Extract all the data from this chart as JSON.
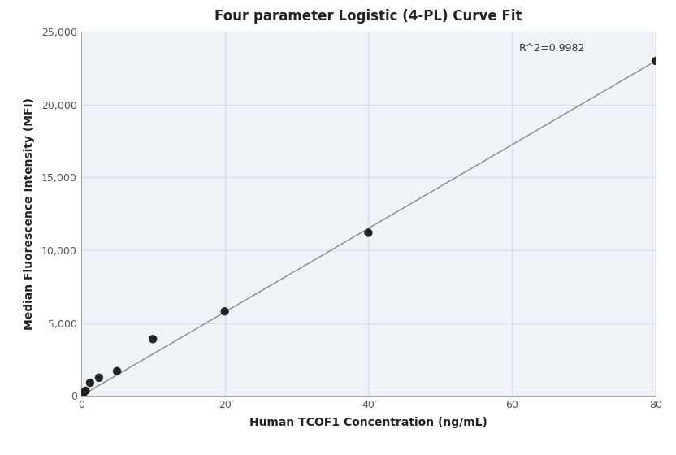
{
  "title": "Four parameter Logistic (4-PL) Curve Fit",
  "xlabel": "Human TCOF1 Concentration (ng/mL)",
  "ylabel": "Median Fluorescence Intensity (MFI)",
  "scatter_x": [
    0.156,
    0.3125,
    0.625,
    1.25,
    2.5,
    5.0,
    10.0,
    20.0,
    40.0,
    80.0
  ],
  "scatter_y": [
    90,
    200,
    350,
    900,
    1250,
    1700,
    3900,
    5800,
    11200,
    23000
  ],
  "line_x": [
    0.0,
    80.0
  ],
  "line_y": [
    0.0,
    23000.0
  ],
  "r_squared": "R^2=0.9982",
  "r2_x": 61,
  "r2_y": 23500,
  "xlim": [
    0,
    80
  ],
  "ylim": [
    0,
    25000
  ],
  "xticks": [
    0,
    20,
    40,
    60,
    80
  ],
  "yticks": [
    0,
    5000,
    10000,
    15000,
    20000,
    25000
  ],
  "dot_color": "#222222",
  "dot_size": 55,
  "line_color": "#888888",
  "line_width": 1.0,
  "grid_color": "#d0dce8",
  "bg_color": "#ffffff",
  "plot_bg_color": "#eef3f8",
  "title_fontsize": 12,
  "label_fontsize": 10,
  "tick_fontsize": 9,
  "spine_color": "#aaaaaa"
}
